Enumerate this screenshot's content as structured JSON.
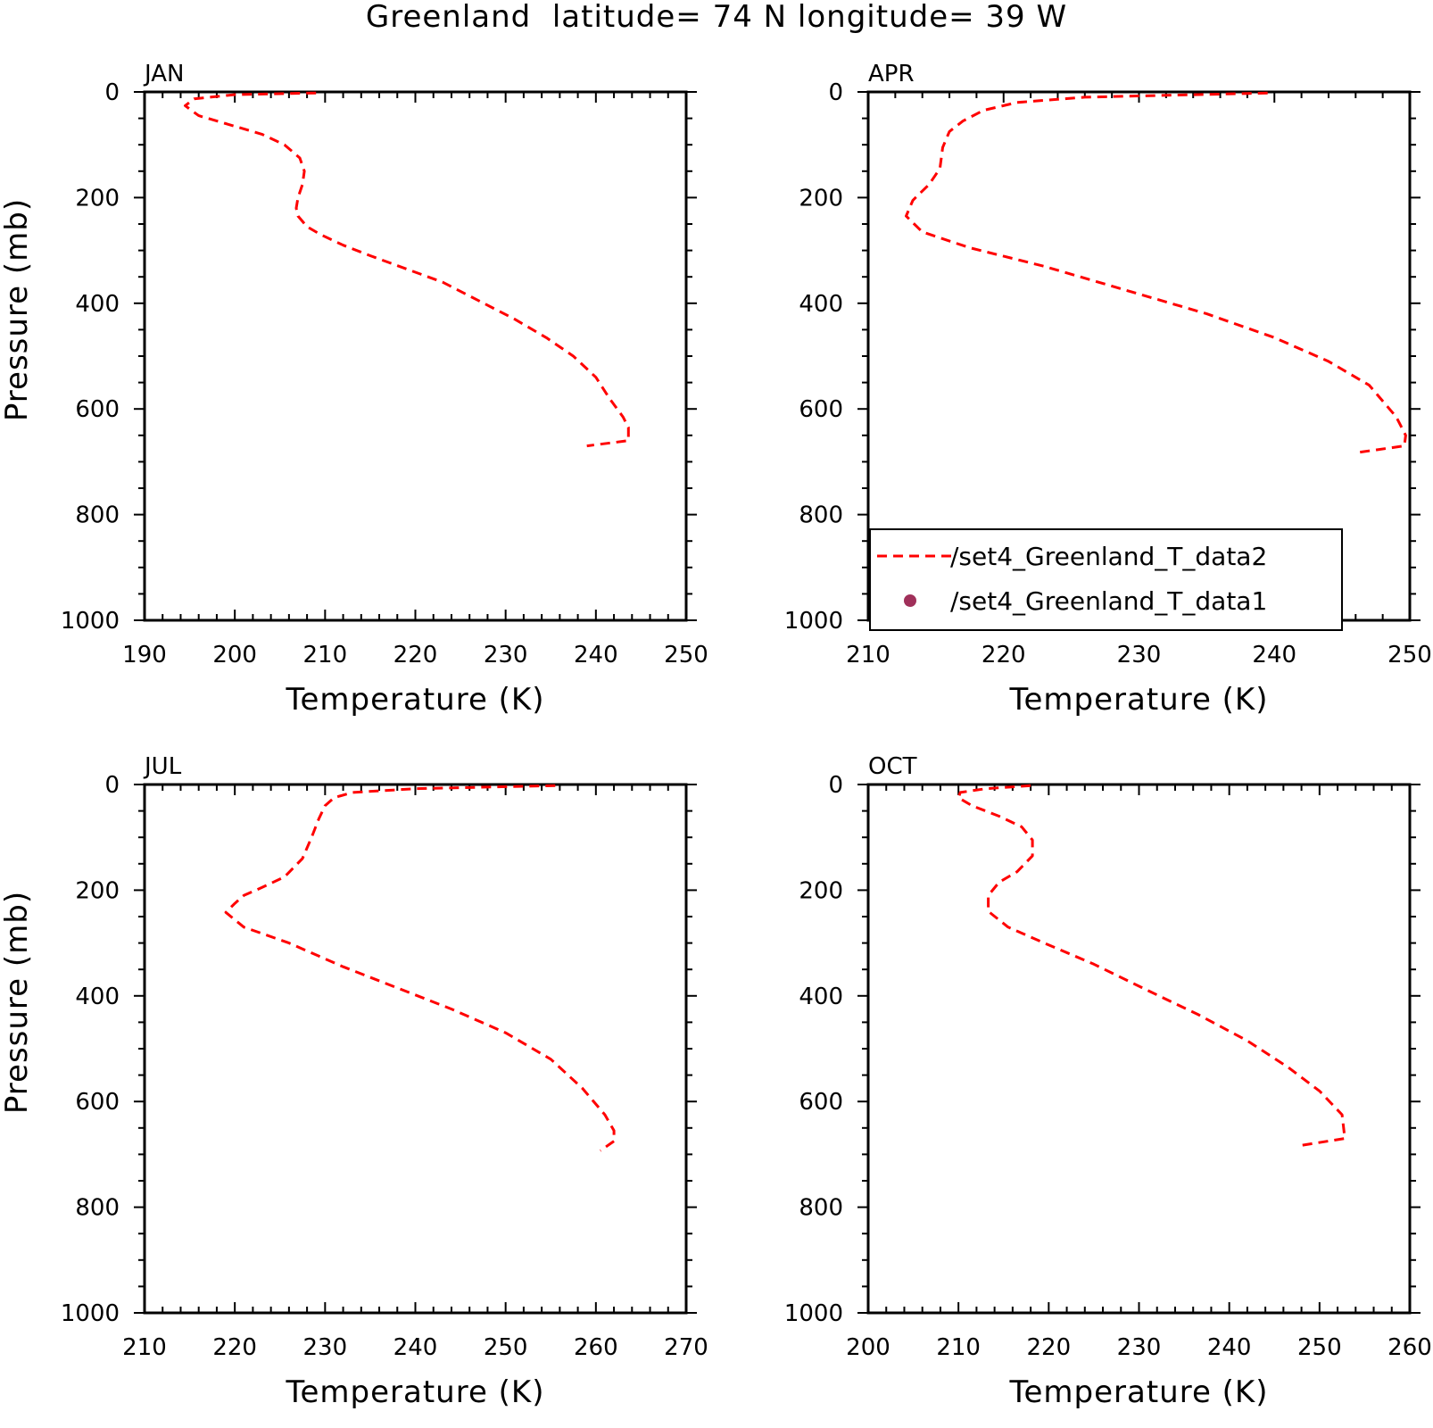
{
  "figure": {
    "title": "Greenland  latitude= 74 N longitude= 39 W"
  },
  "legend": {
    "items": [
      {
        "label": "/set4_Greenland_T_data2",
        "style": "dashed-line",
        "color": "#ff0000"
      },
      {
        "label": "/set4_Greenland_T_data1",
        "style": "dot",
        "color": "#a0305a"
      }
    ],
    "placement": "bottom-left of APR panel"
  },
  "chart_data": [
    {
      "type": "line",
      "title": "JAN",
      "xlabel": "Temperature (K)",
      "ylabel": "Pressure (mb)",
      "xlim": [
        190,
        250
      ],
      "ylim": [
        1000,
        0
      ],
      "x_ticks": [
        190,
        200,
        210,
        220,
        230,
        240,
        250
      ],
      "y_ticks": [
        0,
        200,
        400,
        600,
        800,
        1000
      ],
      "x_tick_labels": [
        "190",
        "200",
        "210",
        "220",
        "230",
        "240",
        "250"
      ],
      "y_tick_labels": [
        "0",
        "200",
        "400",
        "600",
        "800",
        "1000"
      ],
      "series": [
        {
          "name": "/set4_Greenland_T_data2",
          "color": "#ff0000",
          "dash": "dashed",
          "points": [
            [
              209,
              2
            ],
            [
              200,
              5
            ],
            [
              195.5,
              13
            ],
            [
              194.5,
              26
            ],
            [
              196,
              45
            ],
            [
              199,
              60
            ],
            [
              203,
              80
            ],
            [
              205.5,
              100
            ],
            [
              207.2,
              125
            ],
            [
              207.7,
              150
            ],
            [
              207.5,
              175
            ],
            [
              207,
              200
            ],
            [
              206.8,
              220
            ],
            [
              207,
              235
            ],
            [
              208,
              255
            ],
            [
              209.5,
              270
            ],
            [
              212,
              290
            ],
            [
              215,
              310
            ],
            [
              219,
              335
            ],
            [
              223,
              360
            ],
            [
              227,
              395
            ],
            [
              231,
              430
            ],
            [
              234.5,
              465
            ],
            [
              237.5,
              500
            ],
            [
              240,
              540
            ],
            [
              241.5,
              580
            ],
            [
              243,
              615
            ],
            [
              243.6,
              635
            ],
            [
              243.6,
              660
            ],
            [
              239,
              670
            ]
          ]
        }
      ]
    },
    {
      "type": "line",
      "title": "APR",
      "xlabel": "Temperature (K)",
      "ylabel": "",
      "xlim": [
        210,
        250
      ],
      "ylim": [
        1000,
        0
      ],
      "x_ticks": [
        210,
        220,
        230,
        240,
        250
      ],
      "y_ticks": [
        0,
        200,
        400,
        600,
        800,
        1000
      ],
      "x_tick_labels": [
        "210",
        "220",
        "230",
        "240",
        "250"
      ],
      "y_tick_labels": [
        "0",
        "200",
        "400",
        "600",
        "800",
        "1000"
      ],
      "series": [
        {
          "name": "/set4_Greenland_T_data2",
          "color": "#ff0000",
          "dash": "dashed",
          "points": [
            [
              239.5,
              2
            ],
            [
              226,
              10
            ],
            [
              221,
              20
            ],
            [
              218.5,
              35
            ],
            [
              217,
              55
            ],
            [
              216,
              75
            ],
            [
              215.5,
              105
            ],
            [
              215.3,
              145
            ],
            [
              214.5,
              175
            ],
            [
              213.3,
              205
            ],
            [
              212.8,
              235
            ],
            [
              214,
              265
            ],
            [
              217.5,
              295
            ],
            [
              223,
              330
            ],
            [
              229,
              375
            ],
            [
              235,
              420
            ],
            [
              240,
              465
            ],
            [
              244,
              510
            ],
            [
              247,
              555
            ],
            [
              249,
              615
            ],
            [
              249.7,
              650
            ],
            [
              249.6,
              670
            ],
            [
              246,
              683
            ]
          ]
        }
      ]
    },
    {
      "type": "line",
      "title": "JUL",
      "xlabel": "Temperature (K)",
      "ylabel": "Pressure (mb)",
      "xlim": [
        210,
        270
      ],
      "ylim": [
        1000,
        0
      ],
      "x_ticks": [
        210,
        220,
        230,
        240,
        250,
        260,
        270
      ],
      "y_ticks": [
        0,
        200,
        400,
        600,
        800,
        1000
      ],
      "x_tick_labels": [
        "210",
        "220",
        "230",
        "240",
        "250",
        "260",
        "270"
      ],
      "y_tick_labels": [
        "0",
        "200",
        "400",
        "600",
        "800",
        "1000"
      ],
      "series": [
        {
          "name": "/set4_Greenland_T_data2",
          "color": "#ff0000",
          "dash": "dashed",
          "points": [
            [
              255.5,
              2
            ],
            [
              240,
              8
            ],
            [
              233,
              15
            ],
            [
              231,
              25
            ],
            [
              230,
              40
            ],
            [
              229.3,
              65
            ],
            [
              228.5,
              100
            ],
            [
              227.5,
              140
            ],
            [
              225.5,
              175
            ],
            [
              223,
              195
            ],
            [
              221,
              210
            ],
            [
              220,
              225
            ],
            [
              219,
              242
            ],
            [
              221,
              270
            ],
            [
              226,
              300
            ],
            [
              232,
              345
            ],
            [
              238,
              385
            ],
            [
              244,
              425
            ],
            [
              250,
              470
            ],
            [
              255,
              520
            ],
            [
              258.5,
              575
            ],
            [
              261,
              625
            ],
            [
              262,
              655
            ],
            [
              262,
              675
            ],
            [
              260.5,
              693
            ]
          ]
        }
      ]
    },
    {
      "type": "line",
      "title": "OCT",
      "xlabel": "Temperature (K)",
      "ylabel": "",
      "xlim": [
        200,
        260
      ],
      "ylim": [
        1000,
        0
      ],
      "x_ticks": [
        200,
        210,
        220,
        230,
        240,
        250,
        260
      ],
      "y_ticks": [
        0,
        200,
        400,
        600,
        800,
        1000
      ],
      "x_tick_labels": [
        "200",
        "210",
        "220",
        "230",
        "240",
        "250",
        "260"
      ],
      "y_tick_labels": [
        "0",
        "200",
        "400",
        "600",
        "800",
        "1000"
      ],
      "series": [
        {
          "name": "/set4_Greenland_T_data2",
          "color": "#ff0000",
          "dash": "dashed",
          "points": [
            [
              218,
              2
            ],
            [
              213,
              8
            ],
            [
              210.2,
              15
            ],
            [
              210,
              25
            ],
            [
              211.5,
              40
            ],
            [
              214.5,
              60
            ],
            [
              217,
              80
            ],
            [
              218.2,
              105
            ],
            [
              218.2,
              135
            ],
            [
              216.5,
              165
            ],
            [
              214.5,
              185
            ],
            [
              213.3,
              210
            ],
            [
              213.3,
              240
            ],
            [
              215.5,
              270
            ],
            [
              219.5,
              300
            ],
            [
              225,
              340
            ],
            [
              231,
              390
            ],
            [
              236.5,
              435
            ],
            [
              242,
              485
            ],
            [
              246.5,
              535
            ],
            [
              250,
              580
            ],
            [
              252.5,
              625
            ],
            [
              252.8,
              670
            ],
            [
              248,
              683
            ]
          ]
        }
      ]
    }
  ]
}
